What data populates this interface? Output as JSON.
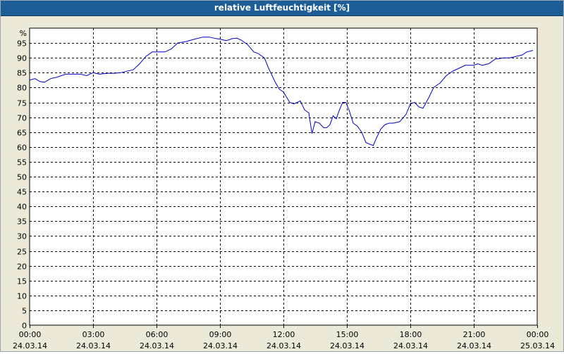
{
  "window": {
    "title": "relative Luftfeuchtigkeit [%]"
  },
  "colors": {
    "titlebar": "#1d5e97",
    "background": "#ece9d8",
    "plot_area": "#ffffff",
    "line": "#0000cc",
    "grid": "#000000"
  },
  "chart_data": {
    "type": "line",
    "title": "relative Luftfeuchtigkeit [%]",
    "ylabel": "%",
    "xlabel": "",
    "ylim": [
      0,
      100
    ],
    "xlim": [
      0,
      24
    ],
    "grid": true,
    "legend": "none",
    "y_ticks": [
      0,
      5,
      10,
      15,
      20,
      25,
      30,
      35,
      40,
      45,
      50,
      55,
      60,
      65,
      70,
      75,
      80,
      85,
      90,
      95
    ],
    "x_ticks": [
      {
        "x": 0,
        "time": "00:00",
        "date": "24.03.14"
      },
      {
        "x": 3,
        "time": "03:00",
        "date": "24.03.14"
      },
      {
        "x": 6,
        "time": "06:00",
        "date": "24.03.14"
      },
      {
        "x": 9,
        "time": "09:00",
        "date": "24.03.14"
      },
      {
        "x": 12,
        "time": "12:00",
        "date": "24.03.14"
      },
      {
        "x": 15,
        "time": "15:00",
        "date": "24.03.14"
      },
      {
        "x": 18,
        "time": "18:00",
        "date": "24.03.14"
      },
      {
        "x": 21,
        "time": "21:00",
        "date": "24.03.14"
      },
      {
        "x": 24,
        "time": "00:00",
        "date": "25.03.14"
      }
    ],
    "series": [
      {
        "x": [
          0,
          0.25,
          0.5,
          0.7,
          1.0,
          1.3,
          1.7,
          2.0,
          2.4,
          2.7,
          3.0,
          3.3,
          3.7,
          4.0,
          4.3,
          4.6,
          4.9,
          5.2,
          5.5,
          5.8,
          6.1,
          6.4,
          6.7,
          7.0,
          7.4,
          7.8,
          8.2,
          8.5,
          8.8,
          9.0,
          9.3,
          9.6,
          9.8,
          10.0,
          10.3,
          10.6,
          10.8,
          11.1,
          11.3,
          11.6,
          11.8,
          12.0,
          12.3,
          12.5,
          12.8,
          13.0,
          13.2,
          13.35,
          13.5,
          13.7,
          13.9,
          14.05,
          14.2,
          14.35,
          14.5,
          14.65,
          14.8,
          14.95,
          15.1,
          15.3,
          15.5,
          15.7,
          15.9,
          16.05,
          16.25,
          16.4,
          16.6,
          16.8,
          17.0,
          17.2,
          17.5,
          17.8,
          18.0,
          18.2,
          18.4,
          18.6,
          18.9,
          19.1,
          19.4,
          19.7,
          20.0,
          20.3,
          20.6,
          20.8,
          21.0,
          21.2,
          21.4,
          21.7,
          22.0,
          22.4,
          22.7,
          23.0,
          23.3,
          23.5,
          23.8
        ],
        "y": [
          82.5,
          83,
          82,
          81.8,
          83,
          83.5,
          84.5,
          84.5,
          84.5,
          84,
          85,
          84.5,
          84.8,
          84.8,
          85,
          85.5,
          86,
          88,
          90.5,
          92,
          92,
          92,
          93,
          95,
          95.5,
          96.3,
          97,
          97,
          96.5,
          96.3,
          95.8,
          96.5,
          96.6,
          96,
          94.5,
          92,
          91.5,
          90,
          86.5,
          82,
          79.5,
          78.5,
          75,
          74.5,
          75.5,
          72.5,
          71.5,
          64.5,
          68.5,
          68,
          66.5,
          66.5,
          67.5,
          70.5,
          69.5,
          72.5,
          75,
          75,
          72.5,
          68,
          67,
          65,
          61.5,
          61,
          60.5,
          63,
          66,
          67.5,
          68,
          68,
          68.5,
          71,
          74.5,
          75,
          73.5,
          73,
          77,
          80,
          81.5,
          84,
          85.5,
          86.5,
          87.5,
          87.5,
          87.5,
          88,
          87.5,
          88,
          89.5,
          90,
          90,
          90.5,
          91,
          92,
          92.5
        ]
      }
    ]
  }
}
